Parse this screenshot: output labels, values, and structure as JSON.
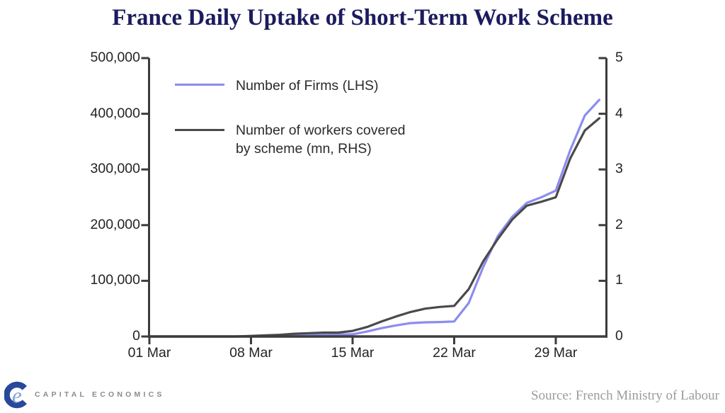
{
  "title": "France Daily Uptake of Short-Term Work Scheme",
  "legend": {
    "firms_label": "Number of Firms (LHS)",
    "workers_label_line1": "Number of workers covered",
    "workers_label_line2": "by scheme (mn, RHS)"
  },
  "footer": {
    "logo_text": "CAPITAL ECONOMICS",
    "logo_monogram": "e",
    "source": "Source: French Ministry of Labour"
  },
  "colors": {
    "title": "#1b1b5e",
    "firms_line": "#8c8cf0",
    "workers_line": "#4a4a4a",
    "axis": "#3c3c3c",
    "tick_text": "#232323",
    "legend_text": "#2b2b2b",
    "source_text": "#9b9b9b",
    "logo_c": "#28499b",
    "logo_e": "#7fa0d2",
    "logo_text": "#8b8b8b"
  },
  "chart_data": {
    "type": "line",
    "title": "France Daily Uptake of Short-Term Work Scheme",
    "x_dates": [
      "01 Mar",
      "02 Mar",
      "03 Mar",
      "04 Mar",
      "05 Mar",
      "06 Mar",
      "07 Mar",
      "08 Mar",
      "09 Mar",
      "10 Mar",
      "11 Mar",
      "12 Mar",
      "13 Mar",
      "14 Mar",
      "15 Mar",
      "16 Mar",
      "17 Mar",
      "18 Mar",
      "19 Mar",
      "20 Mar",
      "21 Mar",
      "22 Mar",
      "23 Mar",
      "24 Mar",
      "25 Mar",
      "26 Mar",
      "27 Mar",
      "28 Mar",
      "29 Mar",
      "30 Mar",
      "31 Mar",
      "01 Apr"
    ],
    "series": [
      {
        "name": "Number of Firms (LHS)",
        "axis": "left",
        "color_key": "firms_line",
        "values": [
          0,
          0,
          0,
          0,
          0,
          0,
          0,
          500,
          1000,
          1500,
          2000,
          2500,
          3000,
          3500,
          4000,
          9000,
          15000,
          20000,
          24000,
          25500,
          26000,
          27000,
          60000,
          125000,
          180000,
          215000,
          240000,
          250000,
          262000,
          335000,
          397000,
          425000
        ]
      },
      {
        "name": "Number of workers covered by scheme (mn, RHS)",
        "axis": "right",
        "color_key": "workers_line",
        "values": [
          0,
          0,
          0,
          0,
          0,
          0,
          0,
          0.01,
          0.02,
          0.03,
          0.05,
          0.06,
          0.07,
          0.07,
          0.1,
          0.17,
          0.27,
          0.36,
          0.44,
          0.5,
          0.53,
          0.55,
          0.85,
          1.35,
          1.75,
          2.1,
          2.35,
          2.42,
          2.5,
          3.2,
          3.7,
          3.92
        ]
      }
    ],
    "left_axis": {
      "min": 0,
      "max": 500000,
      "tick_step": 100000,
      "tick_labels": [
        "0",
        "100,000",
        "200,000",
        "300,000",
        "400,000",
        "500,000"
      ]
    },
    "right_axis": {
      "min": 0,
      "max": 5,
      "tick_step": 1,
      "tick_labels": [
        "0",
        "1",
        "2",
        "3",
        "4",
        "5"
      ]
    },
    "x_tick_labels": [
      "01 Mar",
      "08 Mar",
      "15 Mar",
      "22 Mar",
      "29 Mar"
    ],
    "x_tick_days": [
      0,
      7,
      14,
      21,
      28
    ],
    "grid": false,
    "legend_position": "top-left-inside"
  }
}
